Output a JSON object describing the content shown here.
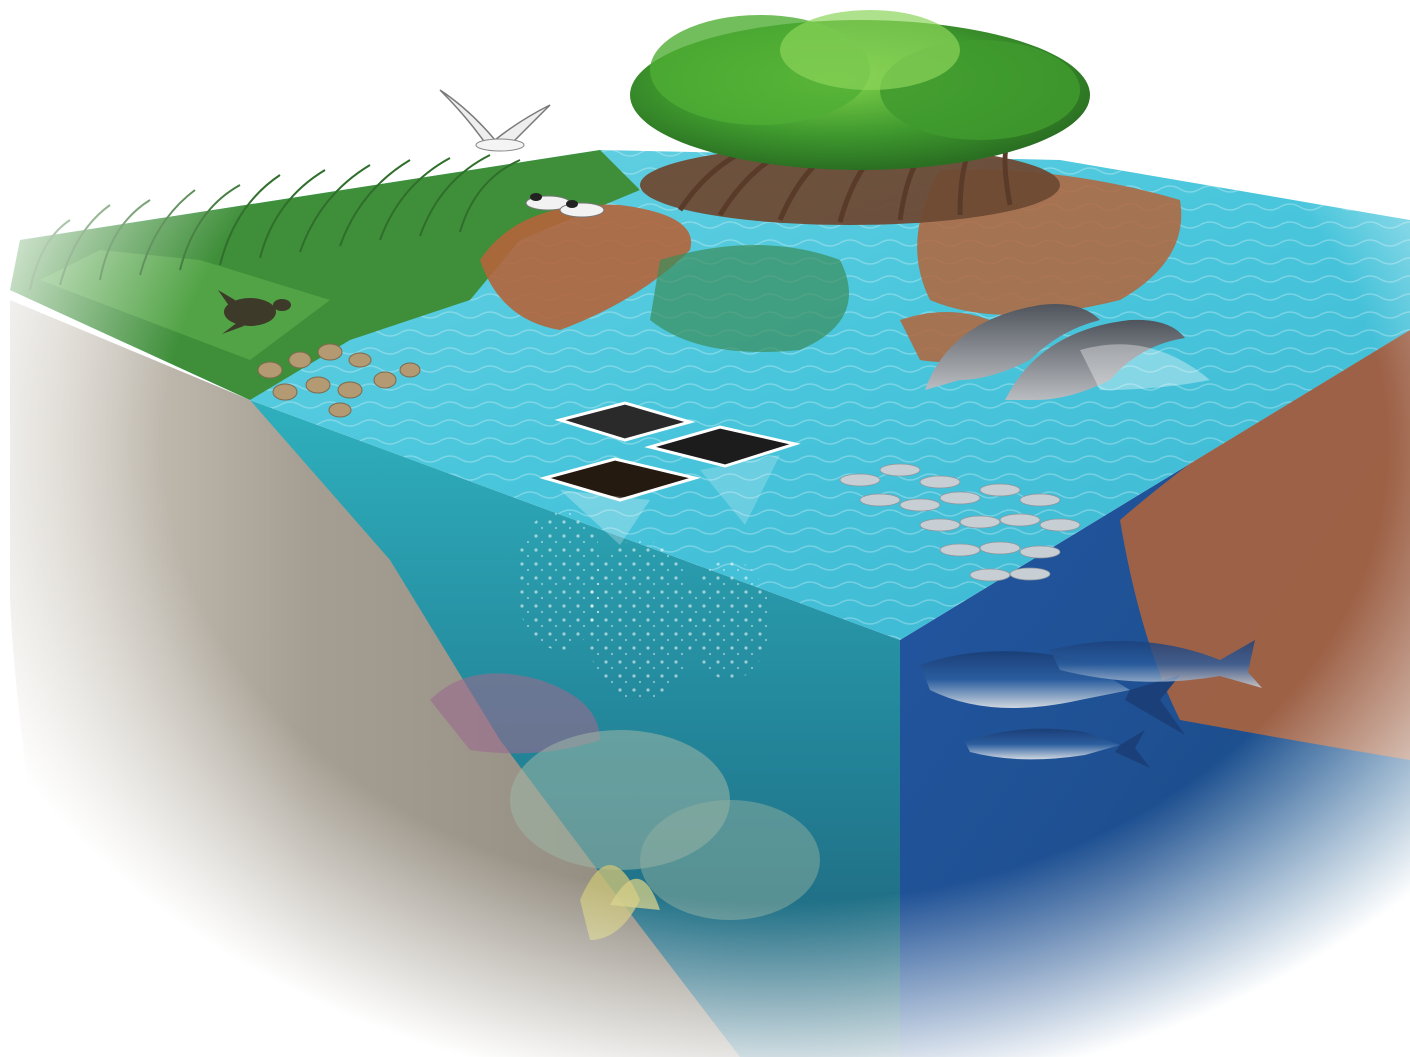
{
  "scene": {
    "subject": "ecosystem-cross-section",
    "colors": {
      "background": "#ffffff",
      "seagrass": "#3f8f3a",
      "marsh_green": "#57a84a",
      "mud": "#b4643a",
      "shallow_water": "#49c6dc",
      "mid_water": "#27a7bd",
      "deep_water": "#1d4f8f",
      "sediment_side": "#a59e92",
      "mangrove_canopy": "#3f9a2e",
      "mangrove_roots": "#6e4a34",
      "fish_silver": "#c8cfd4",
      "tuna_blue": "#2a5d9e",
      "dolphin_gray": "#6b7078",
      "coral": "#9fb6a6"
    },
    "elements": [
      "mangrove-tree",
      "flying-bird",
      "perched-terns",
      "seagrass-meadow",
      "sea-turtle",
      "rocks",
      "mudflat",
      "dolphins",
      "sample-image-tiles",
      "fish-school",
      "tuna",
      "coral-reef",
      "sediment-wall"
    ]
  }
}
